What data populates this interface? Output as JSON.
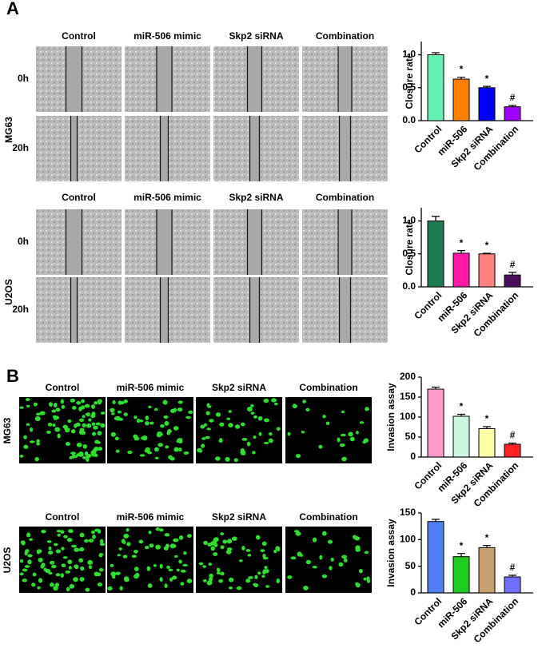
{
  "panel_a": {
    "label": "A",
    "groups": [
      {
        "cell_line": "MG63",
        "columns": [
          "Control",
          "miR-506 mimic",
          "Skp2 siRNA",
          "Combination"
        ],
        "rows": [
          "0h",
          "20h"
        ]
      },
      {
        "cell_line": "U2OS",
        "columns": [
          "Control",
          "miR-506 mimic",
          "Skp2 siRNA",
          "Combination"
        ],
        "rows": [
          "0h",
          "20h"
        ]
      }
    ]
  },
  "panel_b": {
    "label": "B",
    "groups": [
      {
        "cell_line": "MG63",
        "columns": [
          "Control",
          "miR-506 mimic",
          "Skp2 siRNA",
          "Combination"
        ]
      },
      {
        "cell_line": "U2OS",
        "columns": [
          "Control",
          "miR-506 mimic",
          "Skp2 siRNA",
          "Combination"
        ]
      }
    ]
  },
  "chart_data": [
    {
      "type": "bar",
      "y_label": "Closure rate",
      "categories": [
        "Control",
        "miR-506",
        "Skp2 siRNA",
        "Combination"
      ],
      "values": [
        1.0,
        0.63,
        0.5,
        0.21
      ],
      "errors": [
        0.03,
        0.03,
        0.02,
        0.02
      ],
      "markers": [
        null,
        "*",
        "*",
        "#"
      ],
      "colors": [
        "#66f0b0",
        "#ff8000",
        "#0000ff",
        "#a000ff"
      ],
      "ylim": [
        0,
        1.2
      ],
      "yticks": [
        {
          "value": 0,
          "label": "0.0"
        },
        0.5,
        {
          "value": 1,
          "label": "1.0"
        }
      ]
    },
    {
      "type": "bar",
      "y_label": "Closure rate",
      "categories": [
        "Control",
        "miR-506",
        "Skp2 siRNA",
        "Combination"
      ],
      "values": [
        1.0,
        0.51,
        0.5,
        0.18
      ],
      "errors": [
        0.07,
        0.04,
        0.01,
        0.04
      ],
      "markers": [
        null,
        "*",
        "*",
        "#"
      ],
      "colors": [
        "#1e7a50",
        "#ff1aa8",
        "#ff8080",
        "#4b0c5a"
      ],
      "ylim": [
        0,
        1.2
      ],
      "yticks": [
        {
          "value": 0,
          "label": "0.0"
        },
        0.5,
        {
          "value": 1,
          "label": "1.0"
        }
      ]
    },
    {
      "type": "bar",
      "y_label": "Invasion assay",
      "categories": [
        "Control",
        "miR-506",
        "Skp2 siRNA",
        "Combination"
      ],
      "values": [
        170,
        102,
        71,
        32
      ],
      "errors": [
        5,
        5,
        5,
        3
      ],
      "markers": [
        null,
        "*",
        "*",
        "#"
      ],
      "colors": [
        "#ff99cc",
        "#ccf5e0",
        "#ffffa8",
        "#ff2020"
      ],
      "ylim": [
        0,
        200
      ],
      "yticks": [
        0,
        50,
        100,
        150,
        200
      ]
    },
    {
      "type": "bar",
      "y_label": "Invasion assay",
      "categories": [
        "Control",
        "miR-506",
        "Skp2 siRNA",
        "Combination"
      ],
      "values": [
        134,
        68,
        85,
        30
      ],
      "errors": [
        4,
        6,
        4,
        3
      ],
      "markers": [
        null,
        "*",
        "*",
        "#"
      ],
      "colors": [
        "#5080f0",
        "#22cc22",
        "#c8a070",
        "#7070ff"
      ],
      "ylim": [
        0,
        150
      ],
      "yticks": [
        0,
        50,
        100,
        150
      ]
    }
  ]
}
